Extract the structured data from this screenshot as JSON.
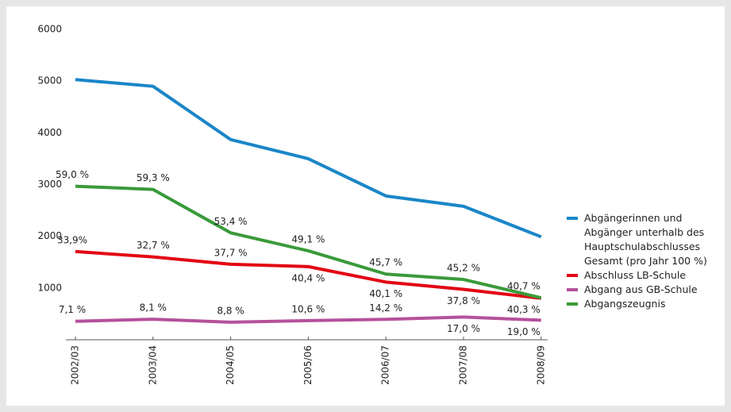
{
  "chart_data": {
    "type": "line",
    "categories": [
      "2002/03",
      "2003/04",
      "2004/05",
      "2005/06",
      "2006/07",
      "2007/08",
      "2008/09"
    ],
    "ylim": [
      0,
      6000
    ],
    "yticks": [
      1000,
      2000,
      3000,
      4000,
      5000,
      6000
    ],
    "series": [
      {
        "name": "Abgängerinnen und Abgänger unterhalb des Hauptschulabschlusses Gesamt (pro Jahr 100 %)",
        "color": "#1a86c8",
        "values": [
          5030,
          4900,
          3870,
          3500,
          2780,
          2580,
          1990
        ]
      },
      {
        "name": "Abschluss LB-Schule",
        "color": "#e30613",
        "values": [
          1705,
          1602,
          1459,
          1414,
          1115,
          975,
          802
        ],
        "point_labels": [
          "33,9%",
          "32,7 %",
          "37,7 %",
          "40,4 %",
          "40,1 %",
          "37,8 %",
          "40,3 %"
        ]
      },
      {
        "name": "Abgang aus GB-Schule",
        "color": "#b5519b",
        "values": [
          357,
          397,
          340,
          371,
          395,
          439,
          378
        ],
        "point_labels": [
          "7,1 %",
          "8,1 %",
          "8,8 %",
          "10,6 %",
          "14,2 %",
          "17,0 %",
          "19,0 %"
        ]
      },
      {
        "name": "Abgangszeugnis",
        "color": "#3a9a3a",
        "values": [
          2968,
          2906,
          2067,
          1719,
          1270,
          1166,
          810
        ],
        "point_labels": [
          "59,0 %",
          "59,3 %",
          "53,4 %",
          "49,1 %",
          "45,7 %",
          "45,2 %",
          "40,7 %"
        ]
      }
    ]
  }
}
